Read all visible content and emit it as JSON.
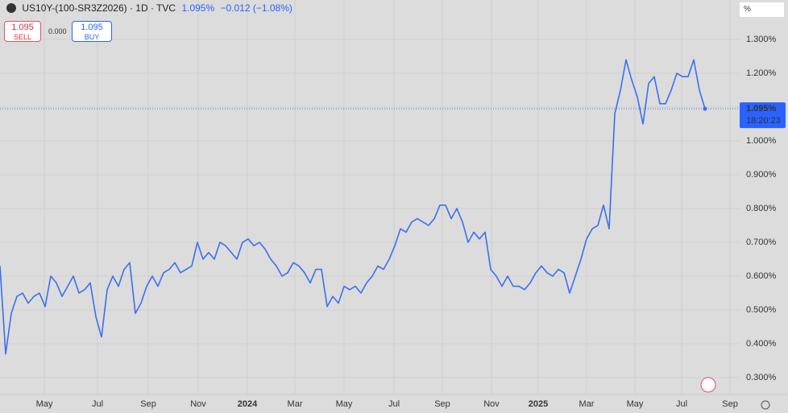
{
  "chart_data": {
    "type": "line",
    "symbol": "US10Y-(100-SR3Z2026) · 1D · TVC",
    "last": "1.095%",
    "change": "−0.012 (−1.08%)",
    "sell": {
      "price": "1.095",
      "label": "SELL"
    },
    "spread": "0.000",
    "buy": {
      "price": "1.095",
      "label": "BUY"
    },
    "unit": "%",
    "price_tag": {
      "value": 1.095,
      "label": "1.095%",
      "countdown": "18:20:23"
    },
    "series": [
      {
        "name": "US10Y-(100-SR3Z2026)",
        "color": "#3a6ff0",
        "values": [
          0.63,
          0.37,
          0.49,
          0.54,
          0.55,
          0.52,
          0.54,
          0.55,
          0.51,
          0.6,
          0.58,
          0.54,
          0.57,
          0.6,
          0.55,
          0.56,
          0.58,
          0.48,
          0.42,
          0.56,
          0.6,
          0.57,
          0.62,
          0.64,
          0.49,
          0.52,
          0.57,
          0.6,
          0.57,
          0.61,
          0.62,
          0.64,
          0.61,
          0.62,
          0.63,
          0.7,
          0.65,
          0.67,
          0.65,
          0.7,
          0.69,
          0.67,
          0.65,
          0.7,
          0.71,
          0.69,
          0.7,
          0.68,
          0.65,
          0.63,
          0.6,
          0.61,
          0.64,
          0.63,
          0.61,
          0.58,
          0.62,
          0.62,
          0.51,
          0.54,
          0.52,
          0.57,
          0.56,
          0.57,
          0.55,
          0.58,
          0.6,
          0.63,
          0.62,
          0.65,
          0.69,
          0.74,
          0.73,
          0.76,
          0.77,
          0.76,
          0.75,
          0.77,
          0.81,
          0.81,
          0.77,
          0.8,
          0.76,
          0.7,
          0.73,
          0.71,
          0.73,
          0.62,
          0.6,
          0.57,
          0.6,
          0.57,
          0.57,
          0.56,
          0.58,
          0.61,
          0.63,
          0.61,
          0.6,
          0.62,
          0.61,
          0.55,
          0.6,
          0.65,
          0.71,
          0.74,
          0.75,
          0.81,
          0.74,
          1.08,
          1.15,
          1.24,
          1.18,
          1.13,
          1.05,
          1.17,
          1.19,
          1.11,
          1.11,
          1.15,
          1.2,
          1.19,
          1.19,
          1.24,
          1.15,
          1.095
        ]
      }
    ],
    "xlim": [
      0,
      131.14
    ],
    "xticks": [
      {
        "value": 7.86,
        "label": "May"
      },
      {
        "value": 17.29,
        "label": "Jul"
      },
      {
        "value": 26.29,
        "label": "Sep"
      },
      {
        "value": 35.14,
        "label": "Nov"
      },
      {
        "value": 43.86,
        "label": "2024"
      },
      {
        "value": 52.29,
        "label": "Mar"
      },
      {
        "value": 61,
        "label": "May"
      },
      {
        "value": 69.86,
        "label": "Jul"
      },
      {
        "value": 78.43,
        "label": "Sep"
      },
      {
        "value": 87.14,
        "label": "Nov"
      },
      {
        "value": 95.43,
        "label": "2025"
      },
      {
        "value": 104,
        "label": "Mar"
      },
      {
        "value": 112.57,
        "label": "May"
      },
      {
        "value": 120.86,
        "label": "Jul"
      },
      {
        "value": 129.43,
        "label": "Sep"
      }
    ],
    "ylim": [
      0.25,
      1.4167
    ],
    "yticks": [
      {
        "value": 0.3,
        "label": "0.300%"
      },
      {
        "value": 0.4,
        "label": "0.400%"
      },
      {
        "value": 0.5,
        "label": "0.500%"
      },
      {
        "value": 0.6,
        "label": "0.600%"
      },
      {
        "value": 0.7,
        "label": "0.700%"
      },
      {
        "value": 0.8,
        "label": "0.800%"
      },
      {
        "value": 0.9,
        "label": "0.900%"
      },
      {
        "value": 1.0,
        "label": "1.000%"
      },
      {
        "value": 1.1,
        "label": "1.100%"
      },
      {
        "value": 1.2,
        "label": "1.200%"
      },
      {
        "value": 1.3,
        "label": "1.300%"
      }
    ],
    "grid": true
  }
}
